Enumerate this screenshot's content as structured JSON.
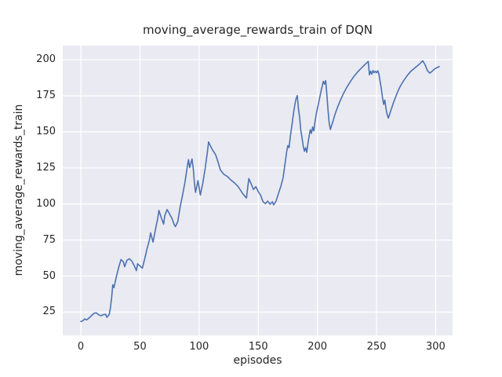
{
  "figure": {
    "title": "moving_average_rewards_train of DQN",
    "xlabel": "episodes",
    "ylabel": "moving_average_rewards_train",
    "colors": {
      "line": "#4c72b0",
      "plot_background": "#eaeaf2",
      "grid": "#ffffff",
      "text": "#262626",
      "figure_background": "#ffffff"
    }
  },
  "chart_data": {
    "type": "line",
    "title": "moving_average_rewards_train of DQN",
    "xlabel": "episodes",
    "ylabel": "moving_average_rewards_train",
    "x_ticks": [
      0,
      50,
      100,
      150,
      200,
      250,
      300
    ],
    "y_ticks": [
      25,
      50,
      75,
      100,
      125,
      150,
      175,
      200
    ],
    "xlim": [
      -15.3,
      314.3
    ],
    "ylim": [
      8.9,
      209.8
    ],
    "grid": true,
    "legend": false,
    "series": [
      {
        "name": "moving_average_rewards_train",
        "color": "#4c72b0",
        "points": [
          [
            0,
            18.5
          ],
          [
            2,
            19.2
          ],
          [
            3,
            20.3
          ],
          [
            5,
            19.6
          ],
          [
            7,
            21.0
          ],
          [
            9,
            22.5
          ],
          [
            11,
            24.2
          ],
          [
            13,
            24.6
          ],
          [
            15,
            23.2
          ],
          [
            17,
            22.5
          ],
          [
            19,
            23.3
          ],
          [
            21,
            23.5
          ],
          [
            22,
            21.4
          ],
          [
            24,
            23.5
          ],
          [
            25,
            28.0
          ],
          [
            26,
            35.0
          ],
          [
            27,
            44.0
          ],
          [
            28,
            42.0
          ],
          [
            30,
            49.5
          ],
          [
            32,
            56.0
          ],
          [
            34,
            61.5
          ],
          [
            36,
            59.8
          ],
          [
            37,
            56.5
          ],
          [
            39,
            61.0
          ],
          [
            41,
            62.0
          ],
          [
            43,
            60.5
          ],
          [
            45,
            57.5
          ],
          [
            47,
            53.8
          ],
          [
            48,
            58.5
          ],
          [
            50,
            57.0
          ],
          [
            52,
            55.5
          ],
          [
            54,
            62.0
          ],
          [
            56,
            69.0
          ],
          [
            58,
            75.0
          ],
          [
            59,
            80.0
          ],
          [
            61,
            73.5
          ],
          [
            63,
            82.0
          ],
          [
            65,
            90.0
          ],
          [
            66,
            95.5
          ],
          [
            68,
            90.5
          ],
          [
            70,
            86.0
          ],
          [
            71,
            92.0
          ],
          [
            73,
            96.2
          ],
          [
            75,
            93.0
          ],
          [
            77,
            90.0
          ],
          [
            79,
            85.5
          ],
          [
            80,
            84.3
          ],
          [
            82,
            88.0
          ],
          [
            84,
            98.0
          ],
          [
            86,
            106.0
          ],
          [
            88,
            115.0
          ],
          [
            90,
            126.0
          ],
          [
            91,
            130.7
          ],
          [
            92,
            125.2
          ],
          [
            94,
            131.2
          ],
          [
            95,
            125.0
          ],
          [
            96,
            115.0
          ],
          [
            97,
            108.0
          ],
          [
            99,
            116.2
          ],
          [
            101,
            106.2
          ],
          [
            103,
            114.0
          ],
          [
            105,
            124.0
          ],
          [
            107,
            136.0
          ],
          [
            108,
            143.0
          ],
          [
            110,
            139.5
          ],
          [
            112,
            136.5
          ],
          [
            114,
            134.0
          ],
          [
            116,
            129.0
          ],
          [
            118,
            123.5
          ],
          [
            121,
            120.5
          ],
          [
            124,
            119.0
          ],
          [
            127,
            116.5
          ],
          [
            130,
            114.5
          ],
          [
            133,
            112.0
          ],
          [
            135,
            109.5
          ],
          [
            137,
            107.0
          ],
          [
            139,
            105.0
          ],
          [
            140,
            104.2
          ],
          [
            142,
            117.6
          ],
          [
            144,
            114.0
          ],
          [
            146,
            110.0
          ],
          [
            148,
            112.0
          ],
          [
            150,
            108.5
          ],
          [
            152,
            106.0
          ],
          [
            154,
            101.5
          ],
          [
            156,
            100.2
          ],
          [
            158,
            102.0
          ],
          [
            160,
            99.8
          ],
          [
            162,
            101.5
          ],
          [
            163,
            99.4
          ],
          [
            165,
            102.0
          ],
          [
            167,
            107.0
          ],
          [
            169,
            112.0
          ],
          [
            171,
            118.0
          ],
          [
            172,
            124.0
          ],
          [
            173,
            130.0
          ],
          [
            174,
            136.0
          ],
          [
            175,
            140.5
          ],
          [
            176,
            139.0
          ],
          [
            177,
            146.0
          ],
          [
            178,
            152.0
          ],
          [
            179,
            158.0
          ],
          [
            180,
            164.0
          ],
          [
            181,
            169.0
          ],
          [
            182,
            173.0
          ],
          [
            183,
            175.1
          ],
          [
            184,
            166.0
          ],
          [
            185,
            160.0
          ],
          [
            186,
            151.0
          ],
          [
            187,
            146.0
          ],
          [
            188,
            140.0
          ],
          [
            189,
            136.5
          ],
          [
            190,
            139.0
          ],
          [
            191,
            135.8
          ],
          [
            192,
            142.0
          ],
          [
            193,
            147.0
          ],
          [
            194,
            151.5
          ],
          [
            195,
            149.0
          ],
          [
            196,
            153.4
          ],
          [
            197,
            150.6
          ],
          [
            198,
            157.0
          ],
          [
            199,
            162.0
          ],
          [
            200,
            166.0
          ],
          [
            201,
            170.0
          ],
          [
            202,
            174.0
          ],
          [
            203,
            178.0
          ],
          [
            204,
            181.5
          ],
          [
            205,
            185.0
          ],
          [
            206,
            183.0
          ],
          [
            207,
            185.5
          ],
          [
            208,
            176.0
          ],
          [
            209,
            165.0
          ],
          [
            210,
            156.0
          ],
          [
            211,
            151.6
          ],
          [
            213,
            157.0
          ],
          [
            215,
            162.5
          ],
          [
            217,
            167.0
          ],
          [
            219,
            171.0
          ],
          [
            222,
            176.5
          ],
          [
            225,
            181.0
          ],
          [
            228,
            185.0
          ],
          [
            231,
            188.5
          ],
          [
            234,
            191.5
          ],
          [
            237,
            194.0
          ],
          [
            240,
            196.5
          ],
          [
            242,
            198.0
          ],
          [
            243,
            198.8
          ],
          [
            244,
            189.5
          ],
          [
            245,
            192.0
          ],
          [
            246,
            190.0
          ],
          [
            247,
            192.5
          ],
          [
            248,
            191.0
          ],
          [
            249,
            192.0
          ],
          [
            250,
            191.0
          ],
          [
            251,
            192.3
          ],
          [
            252,
            190.0
          ],
          [
            253,
            185.0
          ],
          [
            254,
            180.0
          ],
          [
            255,
            174.0
          ],
          [
            256,
            169.0
          ],
          [
            257,
            172.0
          ],
          [
            258,
            166.0
          ],
          [
            259,
            162.0
          ],
          [
            260,
            159.5
          ],
          [
            262,
            164.5
          ],
          [
            264,
            169.5
          ],
          [
            266,
            174.0
          ],
          [
            268,
            178.0
          ],
          [
            270,
            181.5
          ],
          [
            273,
            185.5
          ],
          [
            276,
            189.0
          ],
          [
            279,
            192.0
          ],
          [
            282,
            194.0
          ],
          [
            285,
            196.0
          ],
          [
            287,
            197.5
          ],
          [
            289,
            199.3
          ],
          [
            291,
            196.5
          ],
          [
            293,
            192.5
          ],
          [
            295,
            190.7
          ],
          [
            297,
            192.0
          ],
          [
            299,
            193.5
          ],
          [
            301,
            194.5
          ],
          [
            303,
            195.2
          ]
        ]
      }
    ]
  }
}
